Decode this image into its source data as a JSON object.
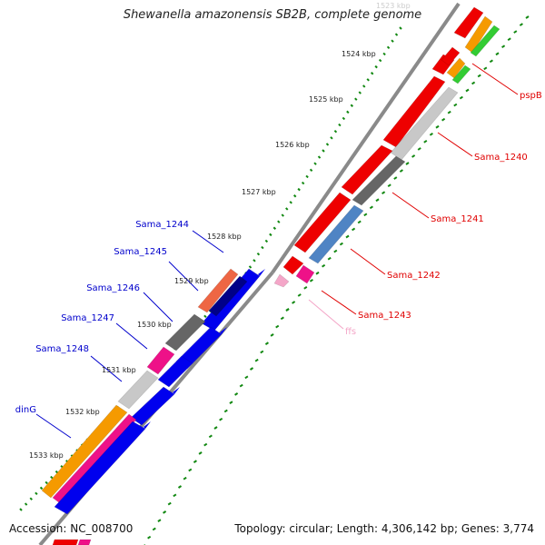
{
  "title": "Shewanella amazonensis SB2B, complete genome",
  "accession": "Accession: NC_008700",
  "summary": "Topology: circular; Length: 4,306,142 bp; Genes: 3,774",
  "ticks": [
    {
      "label": "1523 kbp",
      "faded": true
    },
    {
      "label": "1524 kbp"
    },
    {
      "label": "1525 kbp"
    },
    {
      "label": "1526 kbp"
    },
    {
      "label": "1527 kbp"
    },
    {
      "label": "1528 kbp"
    },
    {
      "label": "1529 kbp"
    },
    {
      "label": "1530 kbp"
    },
    {
      "label": "1531 kbp"
    },
    {
      "label": "1532 kbp"
    },
    {
      "label": "1533 kbp"
    }
  ],
  "gene_labels": [
    {
      "text": "pspB",
      "color": "#e00000"
    },
    {
      "text": "Sama_1240",
      "color": "#e00000"
    },
    {
      "text": "Sama_1241",
      "color": "#e00000"
    },
    {
      "text": "Sama_1242",
      "color": "#e00000"
    },
    {
      "text": "Sama_1243",
      "color": "#e00000"
    },
    {
      "text": "ffs",
      "color": "#f4a6c8"
    },
    {
      "text": "Sama_1244",
      "color": "#0000cc"
    },
    {
      "text": "Sama_1245",
      "color": "#0000cc"
    },
    {
      "text": "Sama_1246",
      "color": "#0000cc"
    },
    {
      "text": "Sama_1247",
      "color": "#0000cc"
    },
    {
      "text": "Sama_1248",
      "color": "#0000cc"
    },
    {
      "text": "dinG",
      "color": "#0000cc"
    }
  ],
  "colors": {
    "red": "#ee0000",
    "blue": "#0000ee",
    "dark_gray": "#666666",
    "light_gray": "#c8c8c8",
    "steel_blue": "#4f84c4",
    "magenta": "#ee1188",
    "orange": "#f59a00",
    "green": "#33cc33",
    "salmon": "#ee6644",
    "navy": "#000088",
    "pink": "#f4a6c8",
    "tick_green": "#118811"
  }
}
